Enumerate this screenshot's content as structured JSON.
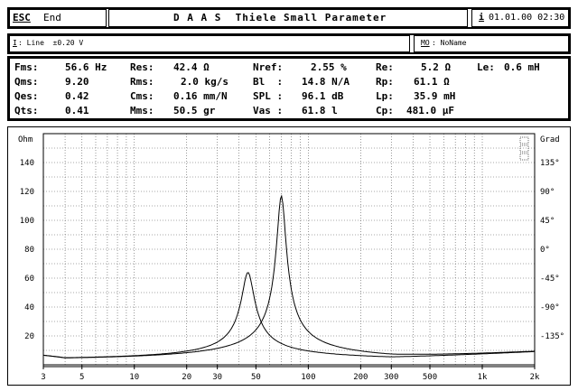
{
  "header": {
    "esc_key": "ESC",
    "esc_label": "End",
    "title": "D A A S  Thiele Small Parameter",
    "info_key": "i",
    "datetime": "01.01.00 02:30"
  },
  "input_bar": {
    "key": "I",
    "label": ": Line  ±0.20 V",
    "mo_key": "MO",
    "mo_label": ": NoName"
  },
  "params": {
    "col1": [
      {
        "name": "Fms:",
        "value": "56.6 Hz"
      },
      {
        "name": "Qms:",
        "value": "9.20"
      },
      {
        "name": "Qes:",
        "value": "0.42"
      },
      {
        "name": "Qts:",
        "value": "0.41"
      }
    ],
    "col2": [
      {
        "name": "Res:",
        "value": "42.4 Ω"
      },
      {
        "name": "Rms:",
        "value": "2.0 kg/s"
      },
      {
        "name": "Cms:",
        "value": "0.16 mm/N"
      },
      {
        "name": "Mms:",
        "value": "50.5 gr"
      }
    ],
    "col3": [
      {
        "name": "Nref:",
        "value": "2.55 %"
      },
      {
        "name": "Bl  :",
        "value": "14.8 N/A"
      },
      {
        "name": "SPL :",
        "value": "96.1 dB"
      },
      {
        "name": "Vas :",
        "value": "61.8 l"
      }
    ],
    "col4": [
      {
        "name": "Re:",
        "value": "5.2 Ω"
      },
      {
        "name": "Rp:",
        "value": "61.1 Ω"
      },
      {
        "name": "Lp:",
        "value": "35.9 mH"
      },
      {
        "name": "Cp:",
        "value": "481.0 µF"
      }
    ],
    "le": {
      "name": "Le:",
      "value": "0.6 mH"
    }
  },
  "chart_data": {
    "type": "line",
    "xscale": "log",
    "xlim": [
      3,
      2000
    ],
    "ylim_left": [
      0,
      160
    ],
    "ylim_right": [
      -180,
      180
    ],
    "grid": true,
    "left_unit": "Ohm",
    "right_unit": "Grad",
    "x_ticks": [
      "3",
      "5",
      "10",
      "20",
      "30",
      "50",
      "100",
      "200",
      "300",
      "500",
      "1k",
      "2k"
    ],
    "x_tick_values": [
      3,
      5,
      10,
      20,
      30,
      50,
      100,
      200,
      300,
      500,
      1000,
      2000
    ],
    "left_ticks": [
      "140",
      "120",
      "100",
      "80",
      "60",
      "40",
      "20"
    ],
    "left_tick_values": [
      140,
      120,
      100,
      80,
      60,
      40,
      20
    ],
    "right_ticks": [
      "135°",
      "90°",
      "45°",
      "0°",
      "-45°",
      "-90°",
      "-135°"
    ],
    "right_tick_values": [
      135,
      90,
      45,
      0,
      -45,
      -90,
      -135
    ],
    "resonance_peaks_hz": [
      45,
      70
    ],
    "resonance_peaks_ohm": [
      64,
      117
    ]
  },
  "colors": {
    "ink": "#000000",
    "paper": "#ffffff",
    "grid": "#555555"
  }
}
